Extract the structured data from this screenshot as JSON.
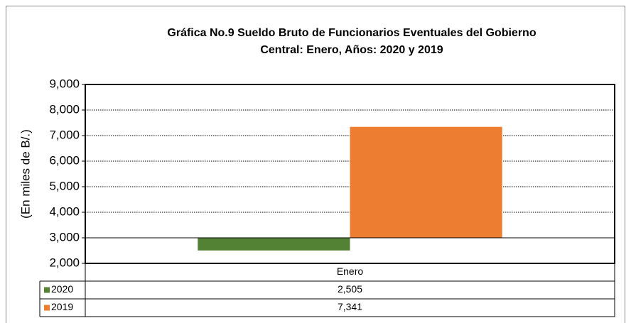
{
  "chart_data": {
    "type": "bar",
    "title": [
      "Gráfica No.9 Sueldo Bruto de Funcionarios Eventuales del  Gobierno",
      "Central: Enero, Años: 2020 y 2019"
    ],
    "y_label": "(En miles de B/.)",
    "categories": [
      "Enero"
    ],
    "series": [
      {
        "name": "2020",
        "color": "#548235",
        "values": [
          2505
        ],
        "value_labels": [
          "2,505"
        ]
      },
      {
        "name": "2019",
        "color": "#ed7d31",
        "values": [
          7341
        ],
        "value_labels": [
          "7,341"
        ]
      }
    ],
    "ylim": [
      2000,
      9000
    ],
    "yticks": [
      {
        "value": 2000,
        "label": "2,000"
      },
      {
        "value": 3000,
        "label": "3,000"
      },
      {
        "value": 4000,
        "label": "4,000"
      },
      {
        "value": 5000,
        "label": "5,000"
      },
      {
        "value": 6000,
        "label": "6,000"
      },
      {
        "value": 7000,
        "label": "7,000"
      },
      {
        "value": 8000,
        "label": "8,000"
      },
      {
        "value": 9000,
        "label": "9,000"
      }
    ],
    "bar_baseline": 3000,
    "grid": true,
    "data_table": true
  }
}
